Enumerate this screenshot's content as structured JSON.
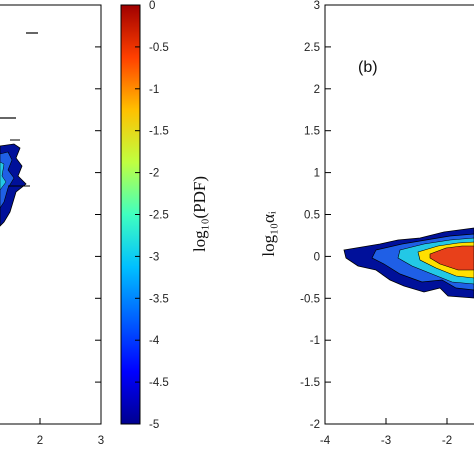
{
  "chart_data": [
    {
      "type": "heatmap",
      "panel": "a",
      "xlim": [
        -4,
        3
      ],
      "ylim": [
        -2,
        3
      ],
      "visible_xticks": [
        "2",
        "3"
      ],
      "note_visible_region": "cropped at left; only right edge of panel shown"
    },
    {
      "type": "heatmap",
      "panel": "b",
      "panel_label": "(b)",
      "ylabel": "log₁₀αᵢ",
      "xlim": [
        -4,
        3
      ],
      "ylim": [
        -2,
        3
      ],
      "xticks": [
        "-4",
        "-3",
        "-2"
      ],
      "yticks": [
        "-2",
        "-1.5",
        "-1",
        "-0.5",
        "0",
        "0.5",
        "1",
        "1.5",
        "2",
        "2.5",
        "3"
      ],
      "grid": false
    }
  ],
  "colorbar": {
    "label": "log₁₀(PDF)",
    "range": [
      -5,
      0
    ],
    "ticks": [
      "0",
      "-0.5",
      "-1",
      "-1.5",
      "-2",
      "-2.5",
      "-3",
      "-3.5",
      "-4",
      "-4.5",
      "-5"
    ],
    "colormap": [
      "#00008f",
      "#0000ff",
      "#0080ff",
      "#00ffff",
      "#80ff80",
      "#ffff00",
      "#ff8000",
      "#ff0000",
      "#800000"
    ]
  },
  "colors": {
    "level_darkblue": "#00109a",
    "level_blue": "#1f5fe6",
    "level_cyan": "#23c8e6",
    "level_yellow": "#ffe000",
    "level_red": "#e8401a"
  }
}
